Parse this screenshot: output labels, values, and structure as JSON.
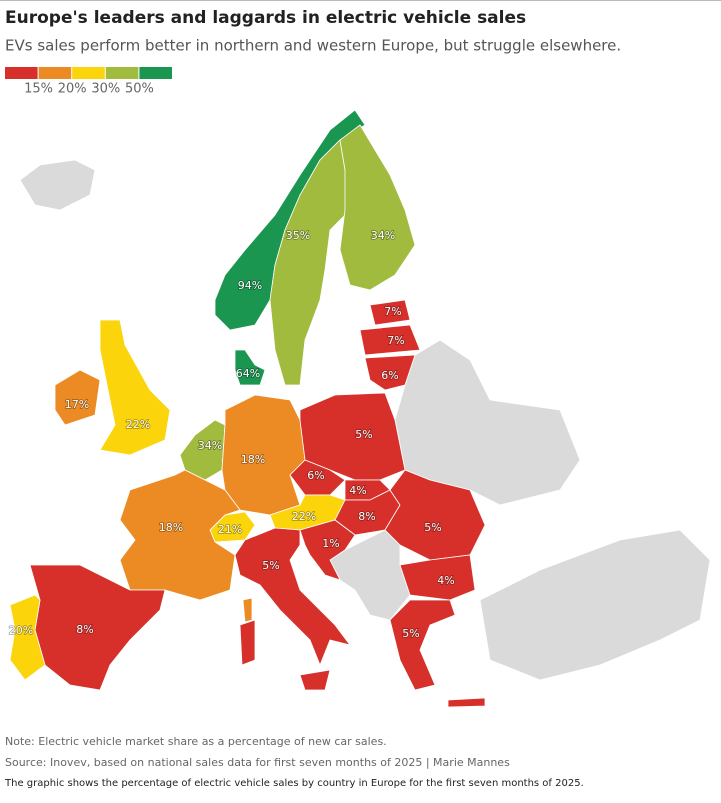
{
  "header": {
    "title": "Europe's leaders and laggards in electric vehicle sales",
    "subtitle": "EVs sales perform better in northern and western Europe, but struggle elsewhere."
  },
  "legend": {
    "colors": [
      "#d7302a",
      "#ec8b24",
      "#fbd40c",
      "#a0bb3d",
      "#1b9651"
    ],
    "labels": [
      "15%",
      "20%",
      "30%",
      "50%"
    ]
  },
  "regions": [
    {
      "label": "94%",
      "color": "#1b9651"
    },
    {
      "label": "35%",
      "color": "#a0bb3d"
    },
    {
      "label": "34%",
      "color": "#a0bb3d"
    },
    {
      "label": "64%",
      "color": "#1b9651"
    },
    {
      "label": "7%",
      "color": "#d7302a"
    },
    {
      "label": "7%",
      "color": "#d7302a"
    },
    {
      "label": "6%",
      "color": "#d7302a"
    },
    {
      "label": "17%",
      "color": "#ec8b24"
    },
    {
      "label": "22%",
      "color": "#fbd40c"
    },
    {
      "label": "34%",
      "color": "#a0bb3d"
    },
    {
      "label": "18%",
      "color": "#ec8b24"
    },
    {
      "label": "5%",
      "color": "#d7302a"
    },
    {
      "label": "6%",
      "color": "#d7302a"
    },
    {
      "label": "4%",
      "color": "#d7302a"
    },
    {
      "label": "22%",
      "color": "#fbd40c"
    },
    {
      "label": "8%",
      "color": "#d7302a"
    },
    {
      "label": "5%",
      "color": "#d7302a"
    },
    {
      "label": "21%",
      "color": "#fbd40c"
    },
    {
      "label": "18%",
      "color": "#ec8b24"
    },
    {
      "label": "5%",
      "color": "#d7302a"
    },
    {
      "label": "1%",
      "color": "#d7302a"
    },
    {
      "label": "4%",
      "color": "#d7302a"
    },
    {
      "label": "5%",
      "color": "#d7302a"
    },
    {
      "label": "8%",
      "color": "#d7302a"
    },
    {
      "label": "20%",
      "color": "#fbd40c"
    }
  ],
  "footer": {
    "note": "Note: Electric vehicle market share as a percentage of new car sales.",
    "source": "Source: Inovev, based on national sales data for first seven months of 2025 | Marie Mannes",
    "caption": "The graphic shows the percentage of electric vehicle sales by country in Europe for the first seven months of 2025."
  }
}
